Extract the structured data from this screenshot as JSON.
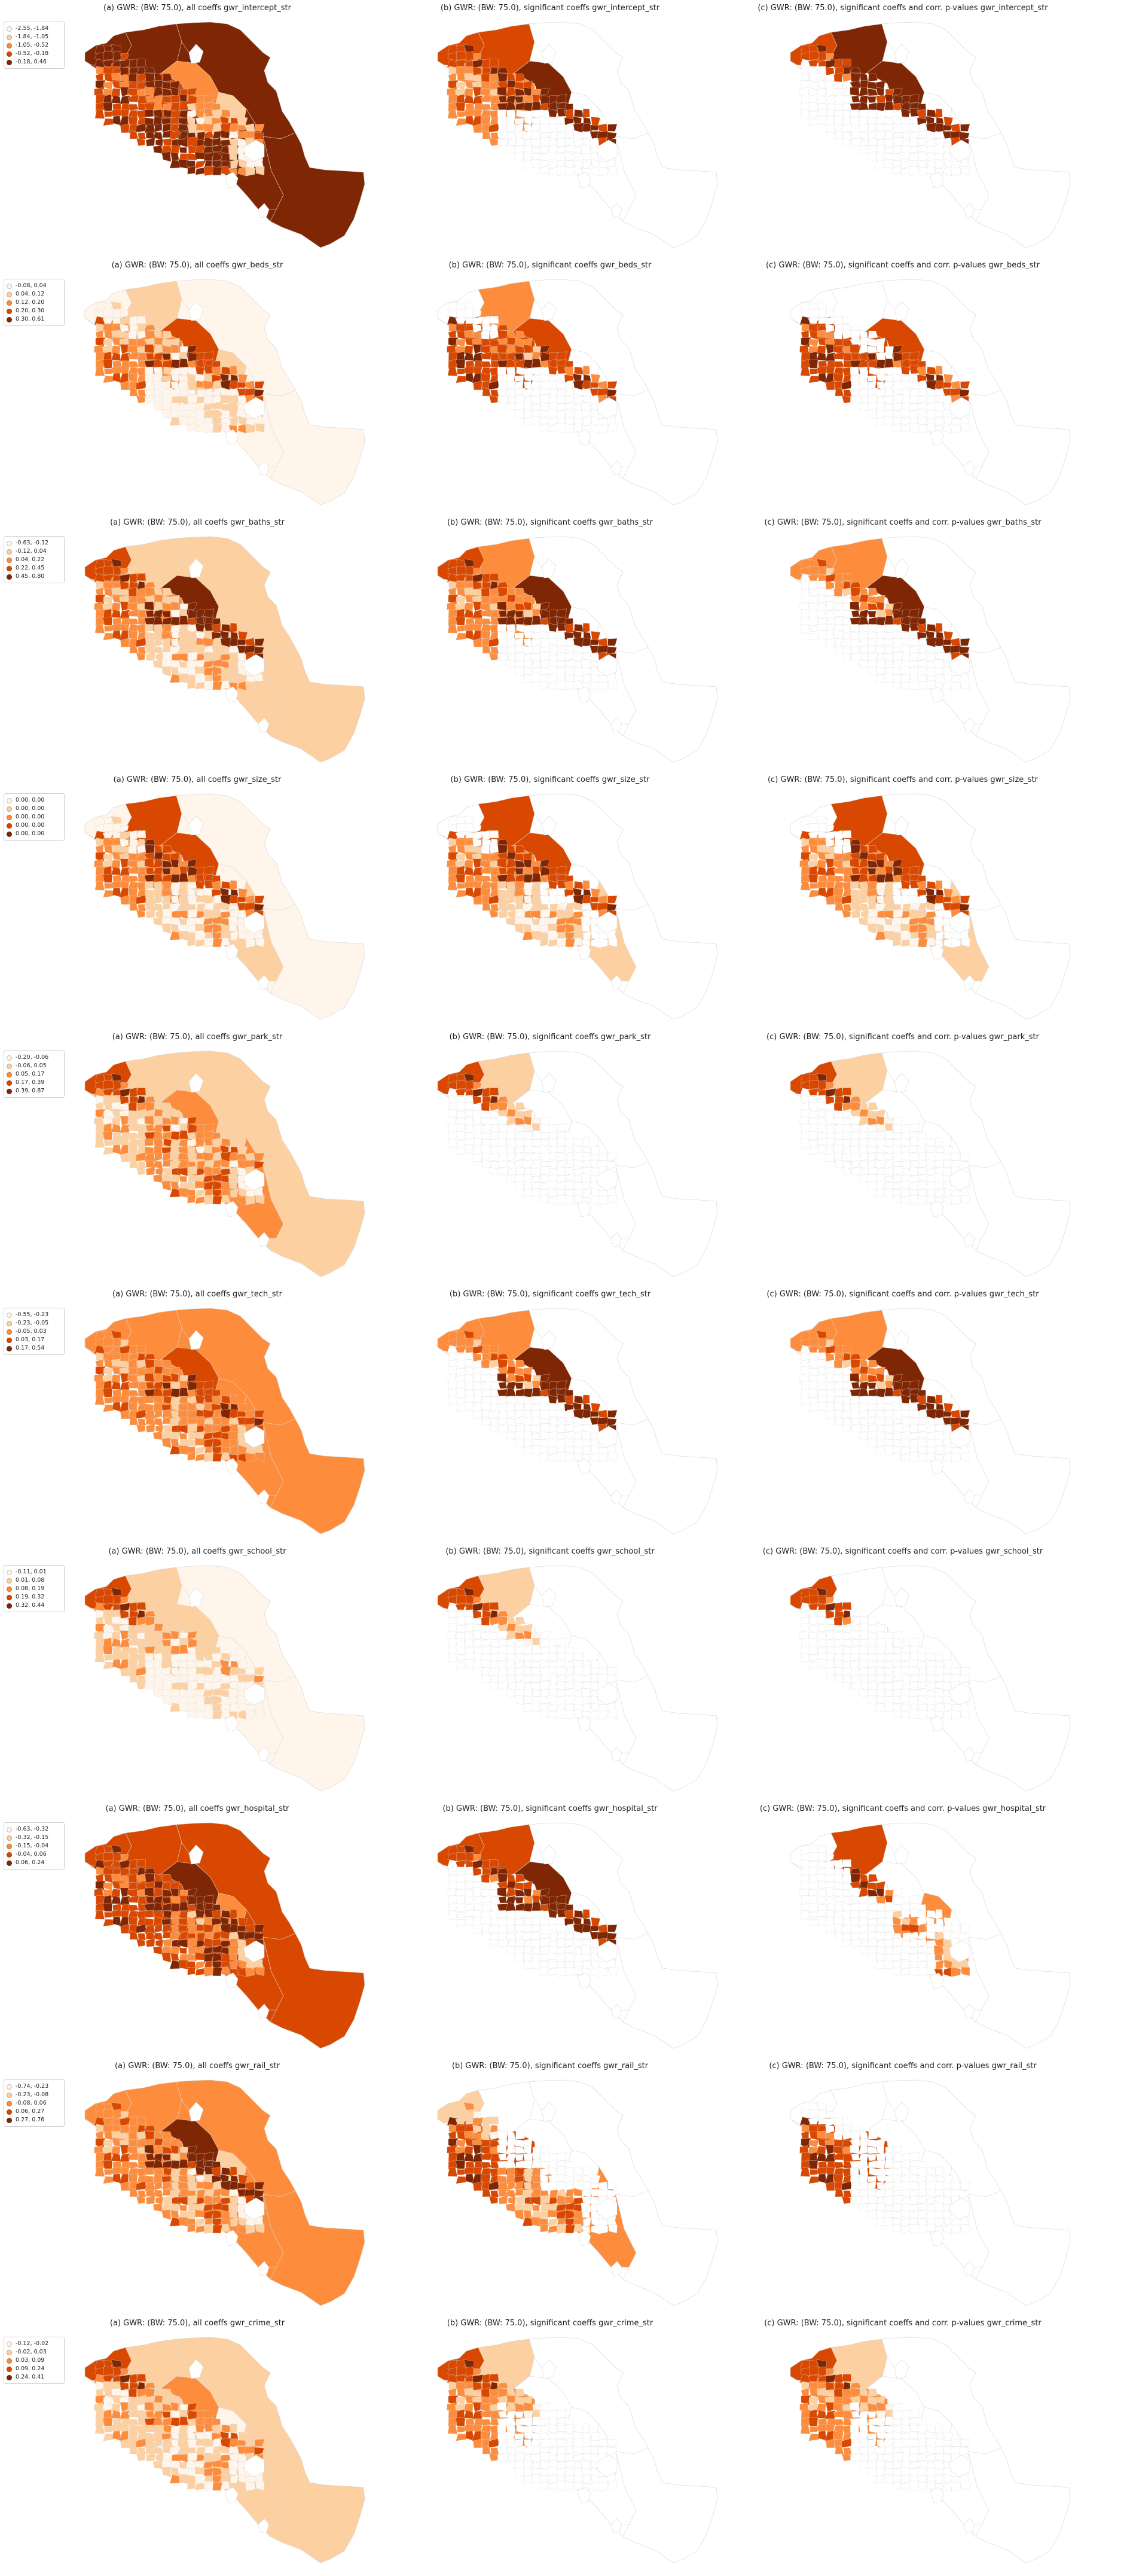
{
  "figure": {
    "colors": {
      "palette": [
        "#fff5eb",
        "#fdd0a2",
        "#fd8d3c",
        "#d94801",
        "#7f2704"
      ],
      "outline": "#d9d9d9",
      "background": "#ffffff"
    },
    "rows": [
      {
        "variable": "gwr_intercept_str",
        "panels": [
          {
            "title": "(a) GWR:  (BW: 75.0), all coeffs gwr_intercept_str",
            "mode": "all"
          },
          {
            "title": "(b) GWR:  (BW: 75.0), significant coeffs gwr_intercept_str",
            "mode": "significant"
          },
          {
            "title": "(c) GWR:  (BW: 75.0), significant coeffs and corr. p-values gwr_intercept_str",
            "mode": "corrected"
          }
        ],
        "legend": [
          "-2.55, -1.84",
          "-1.84, -1.05",
          "-1.05, -0.52",
          "-0.52, -0.18",
          "-0.18,  0.46"
        ],
        "all_fill": [
          4,
          4,
          3,
          2,
          1,
          4,
          4,
          4
        ],
        "sig_fill": [
          3,
          3,
          2,
          4,
          0,
          0,
          0,
          0
        ],
        "corr_fill": [
          3,
          4,
          0,
          4,
          0,
          0,
          0,
          0
        ]
      },
      {
        "variable": "gwr_beds_str",
        "panels": [
          {
            "title": "(a) GWR:  (BW: 75.0), all coeffs gwr_beds_str",
            "mode": "all"
          },
          {
            "title": "(b) GWR:  (BW: 75.0), significant coeffs gwr_beds_str",
            "mode": "significant"
          },
          {
            "title": "(c) GWR:  (BW: 75.0), significant coeffs and corr. p-values gwr_beds_str",
            "mode": "corrected"
          }
        ],
        "legend": [
          "-0.08,  0.04",
          " 0.04,  0.12",
          " 0.12,  0.20",
          " 0.20,  0.30",
          " 0.30,  0.61"
        ],
        "all_fill": [
          0,
          1,
          2,
          3,
          1,
          0,
          0,
          0
        ],
        "sig_fill": [
          0,
          2,
          3,
          3,
          0,
          0,
          0,
          0
        ],
        "corr_fill": [
          0,
          0,
          3,
          3,
          0,
          0,
          0,
          0
        ]
      },
      {
        "variable": "gwr_baths_str",
        "panels": [
          {
            "title": "(a) GWR:  (BW: 75.0), all coeffs gwr_baths_str",
            "mode": "all"
          },
          {
            "title": "(b) GWR:  (BW: 75.0), significant coeffs gwr_baths_str",
            "mode": "significant"
          },
          {
            "title": "(c) GWR:  (BW: 75.0), significant coeffs and corr. p-values gwr_baths_str",
            "mode": "corrected"
          }
        ],
        "legend": [
          "-0.63, -0.12",
          "-0.12,  0.04",
          " 0.04,  0.22",
          " 0.22,  0.45",
          " 0.45,  0.80"
        ],
        "all_fill": [
          3,
          1,
          2,
          4,
          1,
          1,
          1,
          1
        ],
        "sig_fill": [
          3,
          2,
          2,
          4,
          0,
          0,
          0,
          0
        ],
        "corr_fill": [
          2,
          2,
          0,
          4,
          0,
          0,
          0,
          0
        ]
      },
      {
        "variable": "gwr_size_str",
        "panels": [
          {
            "title": "(a) GWR:  (BW: 75.0), all coeffs gwr_size_str",
            "mode": "all"
          },
          {
            "title": "(b) GWR:  (BW: 75.0), significant coeffs gwr_size_str",
            "mode": "significant"
          },
          {
            "title": "(c) GWR:  (BW: 75.0), significant coeffs and corr. p-values gwr_size_str",
            "mode": "corrected"
          }
        ],
        "legend": [
          " 0.00,  0.00",
          " 0.00,  0.00",
          " 0.00,  0.00",
          " 0.00,  0.00",
          " 0.00,  0.00"
        ],
        "all_fill": [
          0,
          3,
          2,
          3,
          0,
          0,
          1,
          0
        ],
        "sig_fill": [
          0,
          3,
          2,
          3,
          0,
          0,
          1,
          0
        ],
        "corr_fill": [
          0,
          3,
          2,
          3,
          0,
          0,
          1,
          0
        ]
      },
      {
        "variable": "gwr_park_str",
        "panels": [
          {
            "title": "(a) GWR:  (BW: 75.0), all coeffs gwr_park_str",
            "mode": "all"
          },
          {
            "title": "(b) GWR:  (BW: 75.0), significant coeffs gwr_park_str",
            "mode": "significant"
          },
          {
            "title": "(c) GWR:  (BW: 75.0), significant coeffs and corr. p-values gwr_park_str",
            "mode": "corrected"
          }
        ],
        "legend": [
          "-0.20, -0.06",
          "-0.06,  0.05",
          " 0.05,  0.17",
          " 0.17,  0.39",
          " 0.39,  0.87"
        ],
        "all_fill": [
          3,
          1,
          1,
          2,
          1,
          1,
          2,
          1
        ],
        "sig_fill": [
          3,
          1,
          0,
          0,
          0,
          0,
          0,
          0
        ],
        "corr_fill": [
          3,
          1,
          0,
          0,
          0,
          0,
          0,
          0
        ]
      },
      {
        "variable": "gwr_tech_str",
        "panels": [
          {
            "title": "(a) GWR:  (BW: 75.0), all coeffs gwr_tech_str",
            "mode": "all"
          },
          {
            "title": "(b) GWR:  (BW: 75.0), significant coeffs gwr_tech_str",
            "mode": "significant"
          },
          {
            "title": "(c) GWR:  (BW: 75.0), significant coeffs and corr. p-values gwr_tech_str",
            "mode": "corrected"
          }
        ],
        "legend": [
          "-0.55, -0.23",
          "-0.23, -0.05",
          "-0.05,  0.03",
          " 0.03,  0.17",
          " 0.17,  0.54"
        ],
        "all_fill": [
          2,
          2,
          2,
          3,
          2,
          2,
          2,
          2
        ],
        "sig_fill": [
          2,
          2,
          0,
          4,
          0,
          0,
          0,
          0
        ],
        "corr_fill": [
          2,
          2,
          0,
          4,
          0,
          0,
          0,
          0
        ]
      },
      {
        "variable": "gwr_school_str",
        "panels": [
          {
            "title": "(a) GWR:  (BW: 75.0), all coeffs gwr_school_str",
            "mode": "all"
          },
          {
            "title": "(b) GWR:  (BW: 75.0), significant coeffs gwr_school_str",
            "mode": "significant"
          },
          {
            "title": "(c) GWR:  (BW: 75.0), significant coeffs and corr. p-values gwr_school_str",
            "mode": "corrected"
          }
        ],
        "legend": [
          "-0.11,  0.01",
          " 0.01,  0.08",
          " 0.08,  0.19",
          " 0.19,  0.32",
          " 0.32,  0.44"
        ],
        "all_fill": [
          3,
          1,
          1,
          1,
          0,
          0,
          0,
          0
        ],
        "sig_fill": [
          3,
          1,
          0,
          0,
          0,
          0,
          0,
          0
        ],
        "corr_fill": [
          3,
          0,
          0,
          0,
          0,
          0,
          0,
          0
        ]
      },
      {
        "variable": "gwr_hospital_str",
        "panels": [
          {
            "title": "(a) GWR:  (BW: 75.0), all coeffs gwr_hospital_str",
            "mode": "all"
          },
          {
            "title": "(b) GWR:  (BW: 75.0), significant coeffs gwr_hospital_str",
            "mode": "significant"
          },
          {
            "title": "(c) GWR:  (BW: 75.0), significant coeffs and corr. p-values gwr_hospital_str",
            "mode": "corrected"
          }
        ],
        "legend": [
          "-0.63, -0.32",
          "-0.32, -0.15",
          "-0.15, -0.04",
          "-0.04,  0.06",
          " 0.06,  0.24"
        ],
        "all_fill": [
          3,
          3,
          3,
          4,
          2,
          3,
          3,
          3
        ],
        "sig_fill": [
          3,
          3,
          0,
          4,
          0,
          0,
          0,
          0
        ],
        "corr_fill": [
          0,
          3,
          0,
          0,
          2,
          0,
          0,
          0
        ]
      },
      {
        "variable": "gwr_rail_str",
        "panels": [
          {
            "title": "(a) GWR:  (BW: 75.0), all coeffs gwr_rail_str",
            "mode": "all"
          },
          {
            "title": "(b) GWR:  (BW: 75.0), significant coeffs gwr_rail_str",
            "mode": "significant"
          },
          {
            "title": "(c) GWR:  (BW: 75.0), significant coeffs and corr. p-values gwr_rail_str",
            "mode": "corrected"
          }
        ],
        "legend": [
          "-0.74, -0.23",
          "-0.23, -0.08",
          "-0.08,  0.06",
          " 0.06,  0.27",
          " 0.27,  0.76"
        ],
        "all_fill": [
          2,
          2,
          2,
          4,
          1,
          2,
          2,
          2
        ],
        "sig_fill": [
          1,
          0,
          3,
          0,
          0,
          0,
          2,
          0
        ],
        "corr_fill": [
          0,
          0,
          3,
          0,
          0,
          0,
          0,
          0
        ]
      },
      {
        "variable": "gwr_crime_str",
        "panels": [
          {
            "title": "(a) GWR:  (BW: 75.0), all coeffs gwr_crime_str",
            "mode": "all"
          },
          {
            "title": "(b) GWR:  (BW: 75.0), significant coeffs gwr_crime_str",
            "mode": "significant"
          },
          {
            "title": "(c) GWR:  (BW: 75.0), significant coeffs and corr. p-values gwr_crime_str",
            "mode": "corrected"
          }
        ],
        "legend": [
          "-0.12, -0.02",
          "-0.02,  0.03",
          " 0.03,  0.09",
          " 0.09,  0.24",
          " 0.24,  0.41"
        ],
        "all_fill": [
          3,
          1,
          1,
          2,
          0,
          1,
          1,
          1
        ],
        "sig_fill": [
          3,
          1,
          2,
          0,
          0,
          0,
          0,
          0
        ],
        "corr_fill": [
          3,
          1,
          2,
          0,
          0,
          0,
          0,
          0
        ]
      }
    ]
  }
}
